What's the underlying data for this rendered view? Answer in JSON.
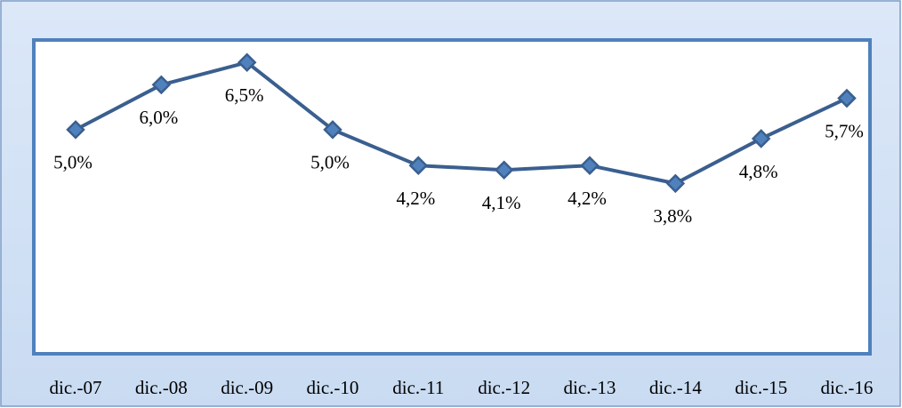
{
  "chart_data": {
    "type": "line",
    "categories": [
      "dic.-07",
      "dic.-08",
      "dic.-09",
      "dic.-10",
      "dic.-11",
      "dic.-12",
      "dic.-13",
      "dic.-14",
      "dic.-15",
      "dic.-16"
    ],
    "values": [
      5.0,
      6.0,
      6.5,
      5.0,
      4.2,
      4.1,
      4.2,
      3.8,
      4.8,
      5.7
    ],
    "value_labels": [
      "5,0%",
      "6,0%",
      "6,5%",
      "5,0%",
      "4,2%",
      "4,1%",
      "4,2%",
      "3,8%",
      "4,8%",
      "5,7%"
    ],
    "color": "#3a5f8f",
    "marker_color": "#4f81bd",
    "ylim": [
      0,
      7
    ]
  }
}
